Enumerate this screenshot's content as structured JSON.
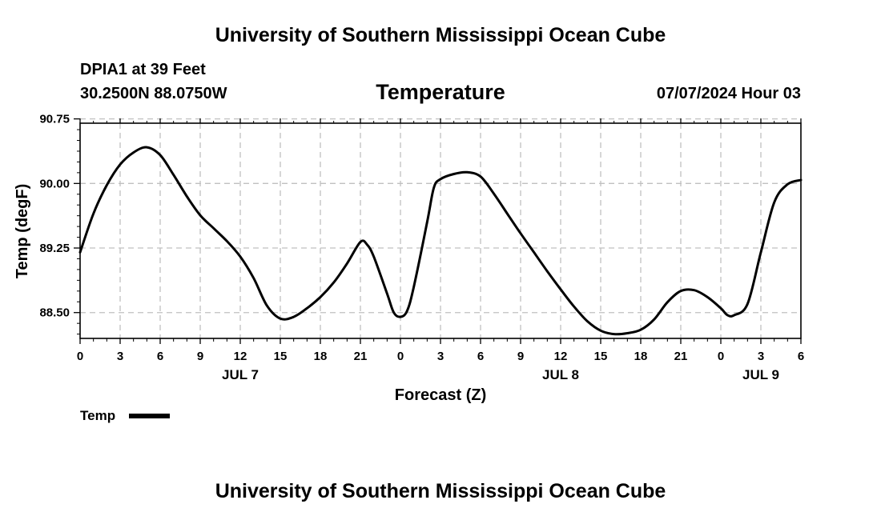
{
  "header": {
    "title_top": "University of Southern Mississippi Ocean Cube",
    "station": "DPIA1 at 39 Feet",
    "coords": "30.2500N  88.0750W",
    "subtitle": "Temperature",
    "datetime": "07/07/2024 Hour 03",
    "title_bottom": "University of Southern Mississippi Ocean Cube"
  },
  "chart_data": {
    "type": "line",
    "title": "Temperature",
    "xlabel": "Forecast (Z)",
    "ylabel": "Temp (degF)",
    "xlim": [
      0,
      54
    ],
    "ylim": [
      88.2,
      90.7
    ],
    "grid": true,
    "x_ticks": [
      0,
      3,
      6,
      9,
      12,
      15,
      18,
      21,
      24,
      27,
      30,
      33,
      36,
      39,
      42,
      45,
      48,
      51,
      54
    ],
    "x_tick_labels": [
      "0",
      "3",
      "6",
      "9",
      "12",
      "15",
      "18",
      "21",
      "0",
      "3",
      "6",
      "9",
      "12",
      "15",
      "18",
      "21",
      "0",
      "3",
      "6"
    ],
    "y_ticks": [
      88.5,
      89.25,
      90.0,
      90.75
    ],
    "y_tick_labels": [
      "88.50",
      "89.25",
      "90.00",
      "90.75"
    ],
    "day_labels": [
      {
        "x": 12,
        "label": "JUL 7"
      },
      {
        "x": 36,
        "label": "JUL 8"
      },
      {
        "x": 51,
        "label": "JUL 9"
      }
    ],
    "legend": {
      "position": "bottom-left",
      "label": "Temp"
    },
    "series": [
      {
        "name": "Temp",
        "color": "#000000",
        "x": [
          0,
          1,
          2,
          3,
          4,
          5,
          6,
          7,
          8,
          9,
          10,
          11,
          12,
          13,
          14,
          15,
          16,
          17,
          18,
          19,
          20,
          21,
          21.5,
          22,
          23,
          23.5,
          24,
          24.5,
          25,
          26,
          26.5,
          27,
          28,
          29,
          30,
          31,
          32,
          33,
          34,
          35,
          36,
          37,
          38,
          39,
          40,
          41,
          42,
          43,
          44,
          45,
          46,
          47,
          48,
          48.5,
          49,
          50,
          51,
          52,
          53,
          54
        ],
        "values": [
          89.2,
          89.65,
          89.98,
          90.22,
          90.36,
          90.42,
          90.33,
          90.1,
          89.85,
          89.63,
          89.48,
          89.33,
          89.15,
          88.9,
          88.58,
          88.43,
          88.45,
          88.55,
          88.68,
          88.85,
          89.07,
          89.32,
          89.29,
          89.15,
          88.72,
          88.5,
          88.45,
          88.52,
          88.8,
          89.55,
          89.95,
          90.05,
          90.11,
          90.13,
          90.08,
          89.88,
          89.65,
          89.42,
          89.2,
          88.98,
          88.77,
          88.57,
          88.4,
          88.29,
          88.25,
          88.26,
          88.3,
          88.42,
          88.62,
          88.75,
          88.76,
          88.68,
          88.55,
          88.47,
          88.47,
          88.6,
          89.2,
          89.78,
          89.99,
          90.04
        ]
      }
    ]
  }
}
